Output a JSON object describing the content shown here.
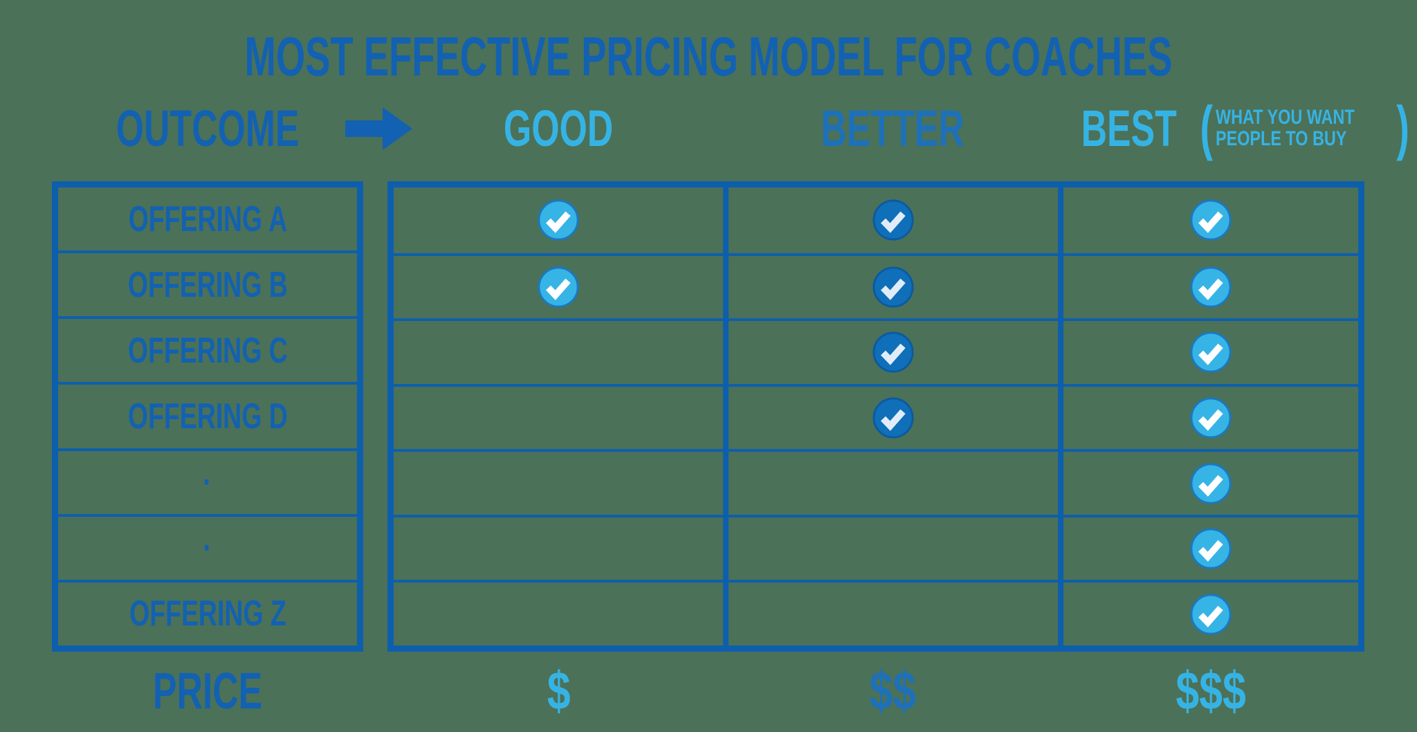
{
  "title": "MOST EFFECTIVE PRICING MODEL FOR COACHES",
  "colors": {
    "background": "#4b7158",
    "deep_blue": "#1261b2",
    "line_blue": "#0d5fad",
    "better_blue": "#1e71b8",
    "light_blue": "#36b3e5",
    "dark_check_fill": "#0f6fb9",
    "light_check_fill": "#36b4e6",
    "check_mark": "#ffffff"
  },
  "header": {
    "outcome_label": "OUTCOME",
    "arrow_icon": "right-arrow",
    "best_note": {
      "open": "(",
      "close": ")",
      "lines": [
        "WHAT YOU WANT",
        "PEOPLE TO BUY"
      ]
    }
  },
  "table": {
    "rows": [
      {
        "label": "OFFERING A"
      },
      {
        "label": "OFFERING B"
      },
      {
        "label": "OFFERING C"
      },
      {
        "label": "OFFERING D"
      },
      {
        "label": "·",
        "dot": true
      },
      {
        "label": "·",
        "dot": true
      },
      {
        "label": "OFFERING Z"
      }
    ],
    "columns": [
      {
        "id": "good",
        "header": "GOOD",
        "tone": "light",
        "price": "$",
        "checks": [
          true,
          true,
          false,
          false,
          false,
          false,
          false
        ]
      },
      {
        "id": "better",
        "header": "BETTER",
        "tone": "dark",
        "price": "$$",
        "checks": [
          true,
          true,
          true,
          true,
          false,
          false,
          false
        ]
      },
      {
        "id": "best",
        "header": "BEST",
        "tone": "light",
        "price": "$$$",
        "checks": [
          true,
          true,
          true,
          true,
          true,
          true,
          true
        ]
      }
    ]
  },
  "footer": {
    "price_label": "PRICE"
  }
}
